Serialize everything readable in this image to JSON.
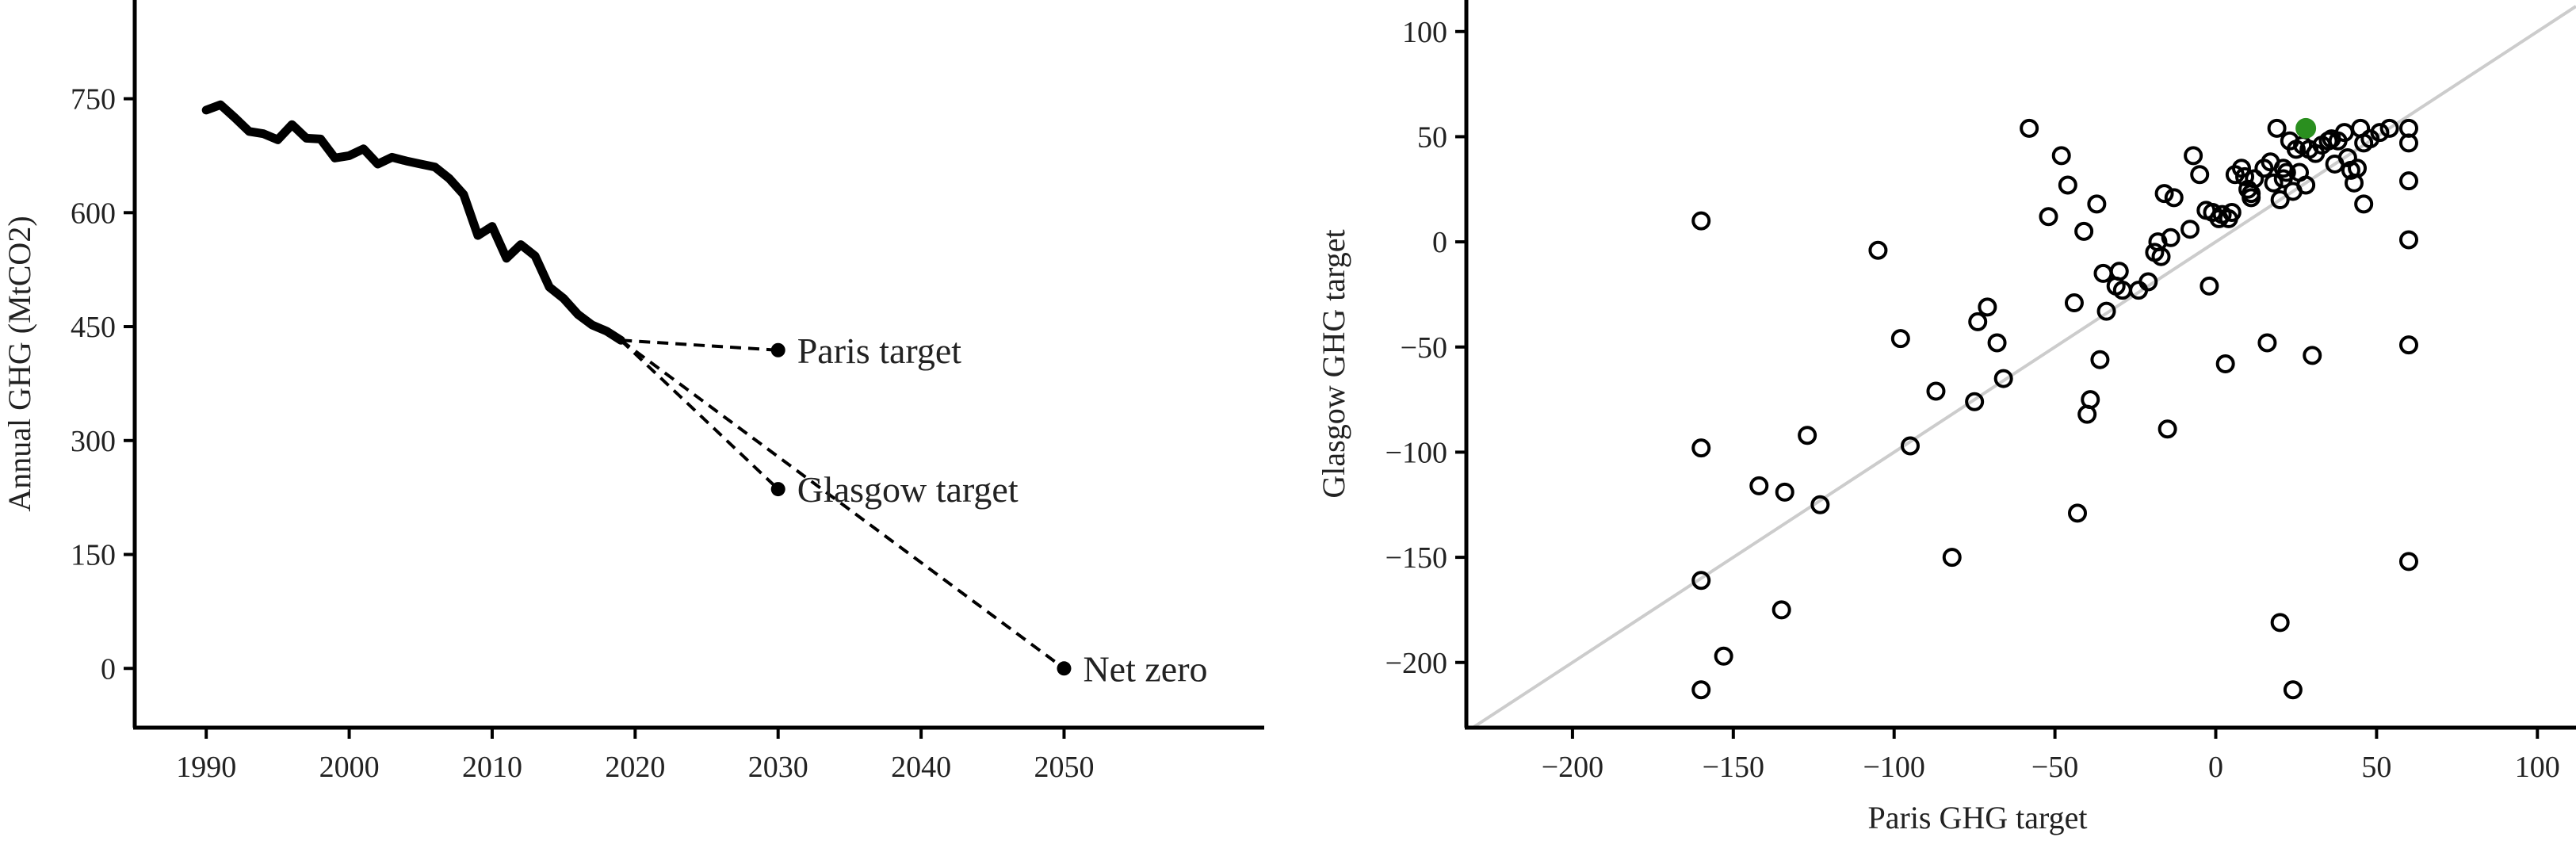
{
  "chart_data": [
    {
      "type": "line",
      "xlabel": "",
      "ylabel": "Annual GHG (MtCO2)",
      "xlim": [
        1985,
        2064
      ],
      "ylim": [
        -78,
        880
      ],
      "x_ticks": [
        1990,
        2000,
        2010,
        2020,
        2030,
        2040,
        2050
      ],
      "y_ticks": [
        0,
        150,
        300,
        450,
        600,
        750
      ],
      "grid": false,
      "series": [
        {
          "style": "solid",
          "x": [
            1990,
            1991,
            1992,
            1993,
            1994,
            1995,
            1996,
            1997,
            1998,
            1999,
            2000,
            2001,
            2002,
            2003,
            2004,
            2005,
            2006,
            2007,
            2008,
            2009,
            2010,
            2011,
            2012,
            2013,
            2014,
            2015,
            2016,
            2017,
            2018,
            2019
          ],
          "y": [
            735,
            742,
            725,
            707,
            704,
            696,
            716,
            698,
            697,
            672,
            675,
            684,
            664,
            673,
            668,
            664,
            660,
            645,
            624,
            570,
            582,
            540,
            558,
            543,
            502,
            487,
            466,
            452,
            444,
            432
          ]
        }
      ],
      "projections": [
        {
          "label": "Paris target",
          "from": [
            2019,
            432
          ],
          "to": [
            2030,
            419
          ]
        },
        {
          "label": "Glasgow target",
          "from": [
            2019,
            432
          ],
          "to": [
            2030,
            236
          ]
        },
        {
          "label": "Net zero",
          "from": [
            2019,
            432
          ],
          "to": [
            2050,
            0
          ]
        }
      ]
    },
    {
      "type": "scatter",
      "xlabel": "Paris GHG target",
      "ylabel": "Glasgow GHG target",
      "xlim": [
        -233,
        112
      ],
      "ylim": [
        -231,
        115
      ],
      "x_ticks": [
        -200,
        -150,
        -100,
        -50,
        0,
        50,
        100
      ],
      "y_ticks": [
        -200,
        -150,
        -100,
        -50,
        0,
        50,
        100
      ],
      "reference_line": "y = x",
      "grid": false,
      "highlight": {
        "x": 28,
        "y": 54,
        "color": "#2a8f1f"
      },
      "points": [
        [
          -160,
          10
        ],
        [
          -160,
          -98
        ],
        [
          -160,
          -161
        ],
        [
          -160,
          -213
        ],
        [
          -153,
          -197
        ],
        [
          -142,
          -116
        ],
        [
          -134,
          -119
        ],
        [
          -127,
          -92
        ],
        [
          -123,
          -125
        ],
        [
          -135,
          -175
        ],
        [
          -105,
          -4
        ],
        [
          -98,
          -46
        ],
        [
          -95,
          -97
        ],
        [
          -87,
          -71
        ],
        [
          -82,
          -150
        ],
        [
          -75,
          -76
        ],
        [
          -74,
          -38
        ],
        [
          -71,
          -31
        ],
        [
          -68,
          -48
        ],
        [
          -66,
          -65
        ],
        [
          -58,
          54
        ],
        [
          -52,
          12
        ],
        [
          -48,
          41
        ],
        [
          -46,
          27
        ],
        [
          -44,
          -29
        ],
        [
          -43,
          -129
        ],
        [
          -41,
          5
        ],
        [
          -40,
          -82
        ],
        [
          -39,
          -75
        ],
        [
          -37,
          18
        ],
        [
          -36,
          -56
        ],
        [
          -35,
          -15
        ],
        [
          -34,
          -33
        ],
        [
          -31,
          -21
        ],
        [
          -30,
          -14
        ],
        [
          -29,
          -23
        ],
        [
          -24,
          -23
        ],
        [
          -21,
          -19
        ],
        [
          -19,
          -5
        ],
        [
          -18,
          0
        ],
        [
          -17,
          -7
        ],
        [
          -16,
          23
        ],
        [
          -15,
          -89
        ],
        [
          -14,
          2
        ],
        [
          -13,
          21
        ],
        [
          -8,
          6
        ],
        [
          -7,
          41
        ],
        [
          -5,
          32
        ],
        [
          -3,
          15
        ],
        [
          -2,
          -21
        ],
        [
          -1,
          14
        ],
        [
          1,
          11
        ],
        [
          2,
          13
        ],
        [
          3,
          -58
        ],
        [
          4,
          11
        ],
        [
          5,
          14
        ],
        [
          6,
          32
        ],
        [
          8,
          35
        ],
        [
          9,
          31
        ],
        [
          10,
          25
        ],
        [
          11,
          23
        ],
        [
          11,
          21
        ],
        [
          12,
          30
        ],
        [
          15,
          35
        ],
        [
          16,
          -48
        ],
        [
          17,
          38
        ],
        [
          18,
          28
        ],
        [
          19,
          54
        ],
        [
          20,
          20
        ],
        [
          21,
          30
        ],
        [
          21,
          35
        ],
        [
          22,
          33
        ],
        [
          23,
          48
        ],
        [
          24,
          -213
        ],
        [
          24,
          24
        ],
        [
          25,
          44
        ],
        [
          26,
          33
        ],
        [
          27,
          46
        ],
        [
          28,
          27
        ],
        [
          29,
          44
        ],
        [
          31,
          42
        ],
        [
          33,
          46
        ],
        [
          35,
          48
        ],
        [
          36,
          49
        ],
        [
          37,
          37
        ],
        [
          38,
          48
        ],
        [
          40,
          52
        ],
        [
          41,
          40
        ],
        [
          42,
          34
        ],
        [
          43,
          28
        ],
        [
          44,
          35
        ],
        [
          45,
          54
        ],
        [
          46,
          18
        ],
        [
          46,
          47
        ],
        [
          48,
          49
        ],
        [
          51,
          52
        ],
        [
          54,
          54
        ],
        [
          60,
          54
        ],
        [
          60,
          47
        ],
        [
          60,
          29
        ],
        [
          60,
          1
        ],
        [
          60,
          -49
        ],
        [
          60,
          -152
        ],
        [
          20,
          -181
        ],
        [
          30,
          -54
        ]
      ]
    }
  ]
}
